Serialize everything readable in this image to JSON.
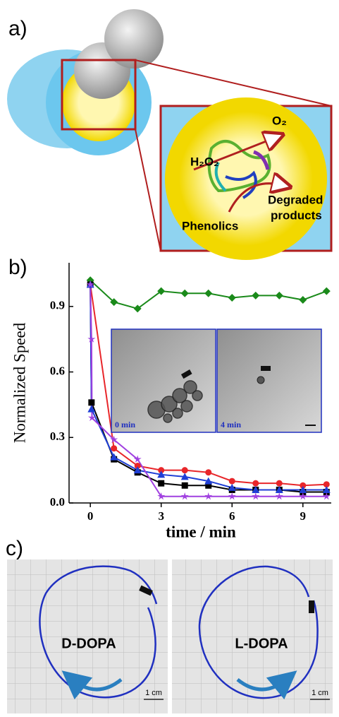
{
  "panel_a": {
    "label": "a)",
    "h2o2": "H₂O₂",
    "o2": "O₂",
    "degraded": [
      "Degraded",
      "products"
    ],
    "phenolics": "Phenolics"
  },
  "chart_data": {
    "type": "scatter",
    "label": "b)",
    "ylabel": "Normalized Speed",
    "xlabel": "time / min",
    "xlim": [
      -0.9,
      10.2
    ],
    "ylim": [
      0,
      1.1
    ],
    "xticks": [
      0,
      3,
      6,
      9
    ],
    "yticks": [
      {
        "value": 0,
        "label": "0.0"
      },
      0.3,
      0.6,
      0.9
    ],
    "inset_labels": [
      "0 min",
      "4 min"
    ],
    "series": [
      {
        "color": "#1a8a1a",
        "marker": "diamond",
        "x": [
          0,
          1,
          2,
          3,
          4,
          5,
          6,
          7,
          8,
          9,
          10
        ],
        "values": [
          1.02,
          0.92,
          0.89,
          0.97,
          0.96,
          0.96,
          0.94,
          0.95,
          0.95,
          0.93,
          0.97
        ]
      },
      {
        "color": "#e8262a",
        "marker": "circle",
        "x": [
          0,
          1,
          2,
          3,
          4,
          5,
          6,
          7,
          8,
          9,
          10
        ],
        "values": [
          1.0,
          0.25,
          0.17,
          0.15,
          0.15,
          0.14,
          0.1,
          0.09,
          0.09,
          0.08,
          0.085
        ]
      },
      {
        "color": "#000000",
        "marker": "square",
        "x": [
          0,
          0.05,
          1,
          2,
          3,
          4,
          5,
          6,
          7,
          8,
          9,
          10
        ],
        "values": [
          1.0,
          0.46,
          0.2,
          0.14,
          0.09,
          0.08,
          0.08,
          0.06,
          0.06,
          0.06,
          0.05,
          0.05
        ]
      },
      {
        "color": "#1f3fd6",
        "marker": "triangle",
        "x": [
          0,
          0.05,
          1,
          2,
          3,
          4,
          5,
          6,
          7,
          8,
          9,
          10
        ],
        "values": [
          1.0,
          0.43,
          0.21,
          0.15,
          0.13,
          0.12,
          0.1,
          0.07,
          0.06,
          0.06,
          0.06,
          0.06
        ]
      },
      {
        "color": "#a040e0",
        "marker": "star",
        "x": [
          0,
          0.05,
          0.07,
          1,
          2,
          3,
          4,
          5,
          6,
          7,
          8,
          9,
          10
        ],
        "values": [
          1.0,
          0.75,
          0.39,
          0.29,
          0.2,
          0.03,
          0.03,
          0.03,
          0.03,
          0.03,
          0.03,
          0.03,
          0.03
        ]
      }
    ]
  },
  "panel_c": {
    "label": "c)",
    "left": "D-DOPA",
    "right": "L-DOPA",
    "scale_left": "1 cm",
    "scale_right": "1 cm"
  }
}
